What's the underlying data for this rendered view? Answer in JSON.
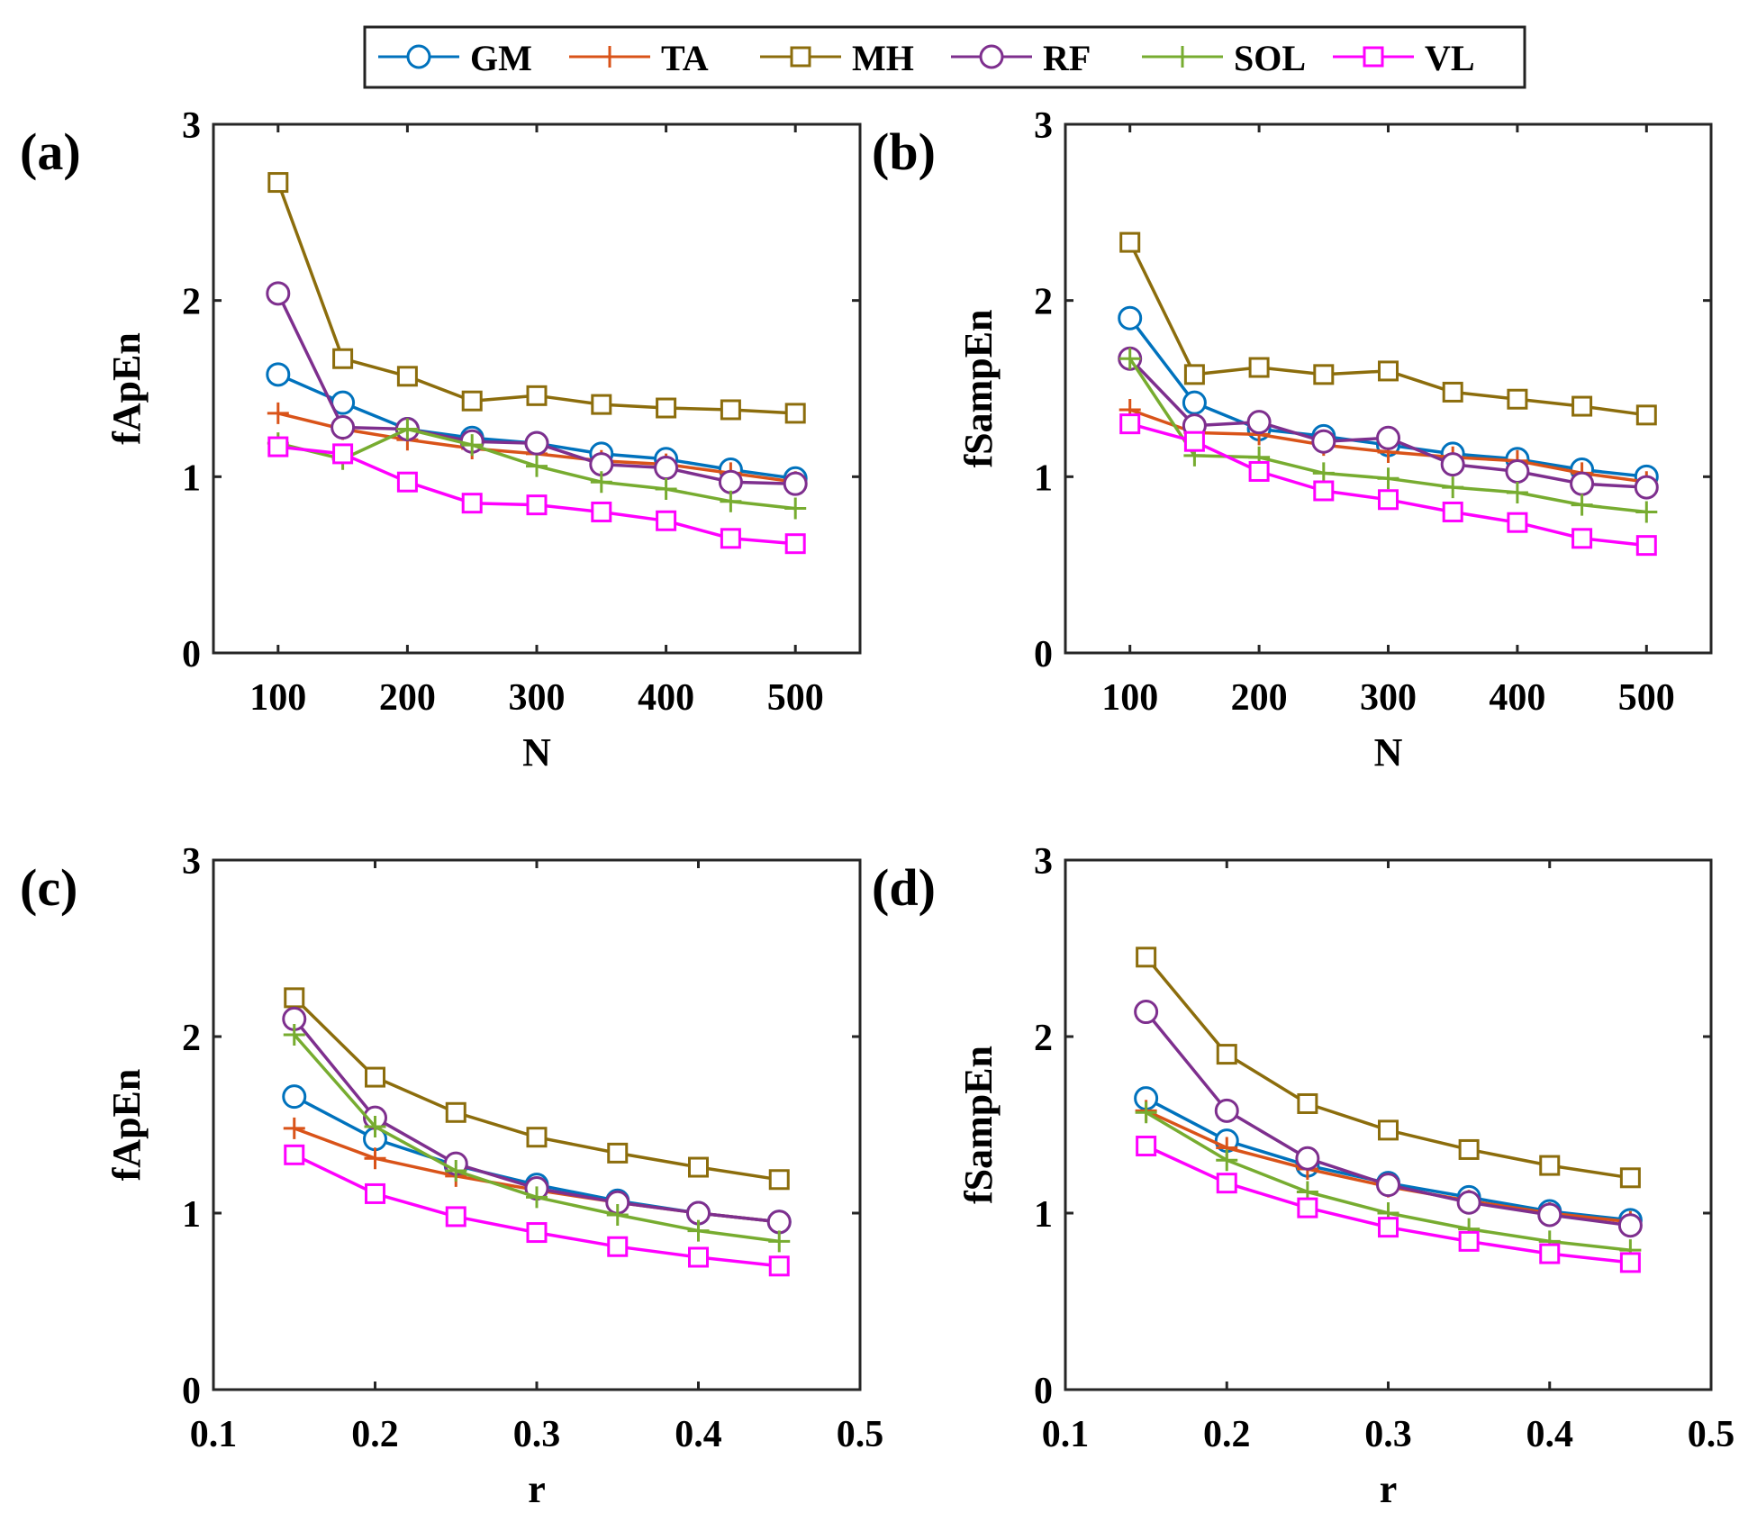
{
  "colors": {
    "GM": "#0072BD",
    "TA": "#D95319",
    "MH": "#8C6D0C",
    "RF": "#7E2F8E",
    "SOL": "#77AC30",
    "VL": "#FF00FF"
  },
  "legend": {
    "entries": [
      {
        "name": "GM",
        "marker": "circle"
      },
      {
        "name": "TA",
        "marker": "plus"
      },
      {
        "name": "MH",
        "marker": "square"
      },
      {
        "name": "RF",
        "marker": "circle"
      },
      {
        "name": "SOL",
        "marker": "plus"
      },
      {
        "name": "VL",
        "marker": "square"
      }
    ]
  },
  "chart_data": [
    {
      "type": "line",
      "panel_label": "(a)",
      "xlabel": "N",
      "ylabel": "fApEn",
      "xlim": [
        50,
        550
      ],
      "ylim": [
        0,
        3
      ],
      "xticks": [
        100,
        200,
        300,
        400,
        500
      ],
      "xtick_labels": [
        "100",
        "200",
        "300",
        "400",
        "500"
      ],
      "yticks": [
        0,
        1,
        2,
        3
      ],
      "ytick_labels": [
        "0",
        "1",
        "2",
        "3"
      ],
      "x": [
        100,
        150,
        200,
        250,
        300,
        350,
        400,
        450,
        500
      ],
      "series": [
        {
          "name": "GM",
          "marker": "circle",
          "values": [
            1.58,
            1.42,
            1.27,
            1.22,
            1.19,
            1.13,
            1.1,
            1.04,
            0.99
          ]
        },
        {
          "name": "TA",
          "marker": "plus",
          "values": [
            1.36,
            1.27,
            1.21,
            1.16,
            1.13,
            1.09,
            1.07,
            1.02,
            0.97
          ]
        },
        {
          "name": "MH",
          "marker": "square",
          "values": [
            2.67,
            1.67,
            1.57,
            1.43,
            1.46,
            1.41,
            1.39,
            1.38,
            1.36
          ]
        },
        {
          "name": "RF",
          "marker": "circle",
          "values": [
            2.04,
            1.28,
            1.27,
            1.2,
            1.19,
            1.07,
            1.05,
            0.97,
            0.96
          ]
        },
        {
          "name": "SOL",
          "marker": "plus",
          "values": [
            1.19,
            1.1,
            1.27,
            1.18,
            1.06,
            0.97,
            0.93,
            0.86,
            0.82
          ]
        },
        {
          "name": "VL",
          "marker": "square",
          "values": [
            1.17,
            1.13,
            0.97,
            0.85,
            0.84,
            0.8,
            0.75,
            0.65,
            0.62
          ]
        }
      ]
    },
    {
      "type": "line",
      "panel_label": "(b)",
      "xlabel": "N",
      "ylabel": "fSampEn",
      "xlim": [
        50,
        550
      ],
      "ylim": [
        0,
        3
      ],
      "xticks": [
        100,
        200,
        300,
        400,
        500
      ],
      "xtick_labels": [
        "100",
        "200",
        "300",
        "400",
        "500"
      ],
      "yticks": [
        0,
        1,
        2,
        3
      ],
      "ytick_labels": [
        "0",
        "1",
        "2",
        "3"
      ],
      "x": [
        100,
        150,
        200,
        250,
        300,
        350,
        400,
        450,
        500
      ],
      "series": [
        {
          "name": "GM",
          "marker": "circle",
          "values": [
            1.9,
            1.42,
            1.27,
            1.23,
            1.18,
            1.13,
            1.1,
            1.04,
            1.0
          ]
        },
        {
          "name": "TA",
          "marker": "plus",
          "values": [
            1.38,
            1.25,
            1.24,
            1.18,
            1.14,
            1.11,
            1.09,
            1.02,
            0.97
          ]
        },
        {
          "name": "MH",
          "marker": "square",
          "values": [
            2.33,
            1.58,
            1.62,
            1.58,
            1.6,
            1.48,
            1.44,
            1.4,
            1.35
          ]
        },
        {
          "name": "RF",
          "marker": "circle",
          "values": [
            1.67,
            1.29,
            1.31,
            1.2,
            1.22,
            1.07,
            1.03,
            0.96,
            0.94
          ]
        },
        {
          "name": "SOL",
          "marker": "plus",
          "values": [
            1.67,
            1.12,
            1.11,
            1.02,
            0.99,
            0.94,
            0.91,
            0.84,
            0.8
          ]
        },
        {
          "name": "VL",
          "marker": "square",
          "values": [
            1.3,
            1.2,
            1.03,
            0.92,
            0.87,
            0.8,
            0.74,
            0.65,
            0.61
          ]
        }
      ]
    },
    {
      "type": "line",
      "panel_label": "(c)",
      "xlabel": "r",
      "ylabel": "fApEn",
      "xlim": [
        0.1,
        0.5
      ],
      "ylim": [
        0,
        3
      ],
      "xticks": [
        0.1,
        0.2,
        0.3,
        0.4,
        0.5
      ],
      "xtick_labels": [
        "0.1",
        "0.2",
        "0.3",
        "0.4",
        "0.5"
      ],
      "yticks": [
        0,
        1,
        2,
        3
      ],
      "ytick_labels": [
        "0",
        "1",
        "2",
        "3"
      ],
      "x": [
        0.15,
        0.2,
        0.25,
        0.3,
        0.35,
        0.4,
        0.45
      ],
      "series": [
        {
          "name": "GM",
          "marker": "circle",
          "values": [
            1.66,
            1.42,
            1.27,
            1.16,
            1.07,
            1.0,
            0.95
          ]
        },
        {
          "name": "TA",
          "marker": "plus",
          "values": [
            1.48,
            1.31,
            1.21,
            1.13,
            1.06,
            1.0,
            0.95
          ]
        },
        {
          "name": "MH",
          "marker": "square",
          "values": [
            2.22,
            1.77,
            1.57,
            1.43,
            1.34,
            1.26,
            1.19
          ]
        },
        {
          "name": "RF",
          "marker": "circle",
          "values": [
            2.1,
            1.54,
            1.28,
            1.14,
            1.06,
            1.0,
            0.95
          ]
        },
        {
          "name": "SOL",
          "marker": "plus",
          "values": [
            2.01,
            1.49,
            1.24,
            1.09,
            0.99,
            0.9,
            0.84
          ]
        },
        {
          "name": "VL",
          "marker": "square",
          "values": [
            1.33,
            1.11,
            0.98,
            0.89,
            0.81,
            0.75,
            0.7
          ]
        }
      ]
    },
    {
      "type": "line",
      "panel_label": "(d)",
      "xlabel": "r",
      "ylabel": "fSampEn",
      "xlim": [
        0.1,
        0.5
      ],
      "ylim": [
        0,
        3
      ],
      "xticks": [
        0.1,
        0.2,
        0.3,
        0.4,
        0.5
      ],
      "xtick_labels": [
        "0.1",
        "0.2",
        "0.3",
        "0.4",
        "0.5"
      ],
      "yticks": [
        0,
        1,
        2,
        3
      ],
      "ytick_labels": [
        "0",
        "1",
        "2",
        "3"
      ],
      "x": [
        0.15,
        0.2,
        0.25,
        0.3,
        0.35,
        0.4,
        0.45
      ],
      "series": [
        {
          "name": "GM",
          "marker": "circle",
          "values": [
            1.65,
            1.41,
            1.27,
            1.17,
            1.09,
            1.01,
            0.96
          ]
        },
        {
          "name": "TA",
          "marker": "plus",
          "values": [
            1.58,
            1.37,
            1.25,
            1.15,
            1.07,
            1.0,
            0.95
          ]
        },
        {
          "name": "MH",
          "marker": "square",
          "values": [
            2.45,
            1.9,
            1.62,
            1.47,
            1.36,
            1.27,
            1.2
          ]
        },
        {
          "name": "RF",
          "marker": "circle",
          "values": [
            2.14,
            1.58,
            1.31,
            1.16,
            1.06,
            0.99,
            0.93
          ]
        },
        {
          "name": "SOL",
          "marker": "plus",
          "values": [
            1.57,
            1.3,
            1.12,
            1.0,
            0.91,
            0.84,
            0.79
          ]
        },
        {
          "name": "VL",
          "marker": "square",
          "values": [
            1.38,
            1.17,
            1.03,
            0.92,
            0.84,
            0.77,
            0.72
          ]
        }
      ]
    }
  ]
}
